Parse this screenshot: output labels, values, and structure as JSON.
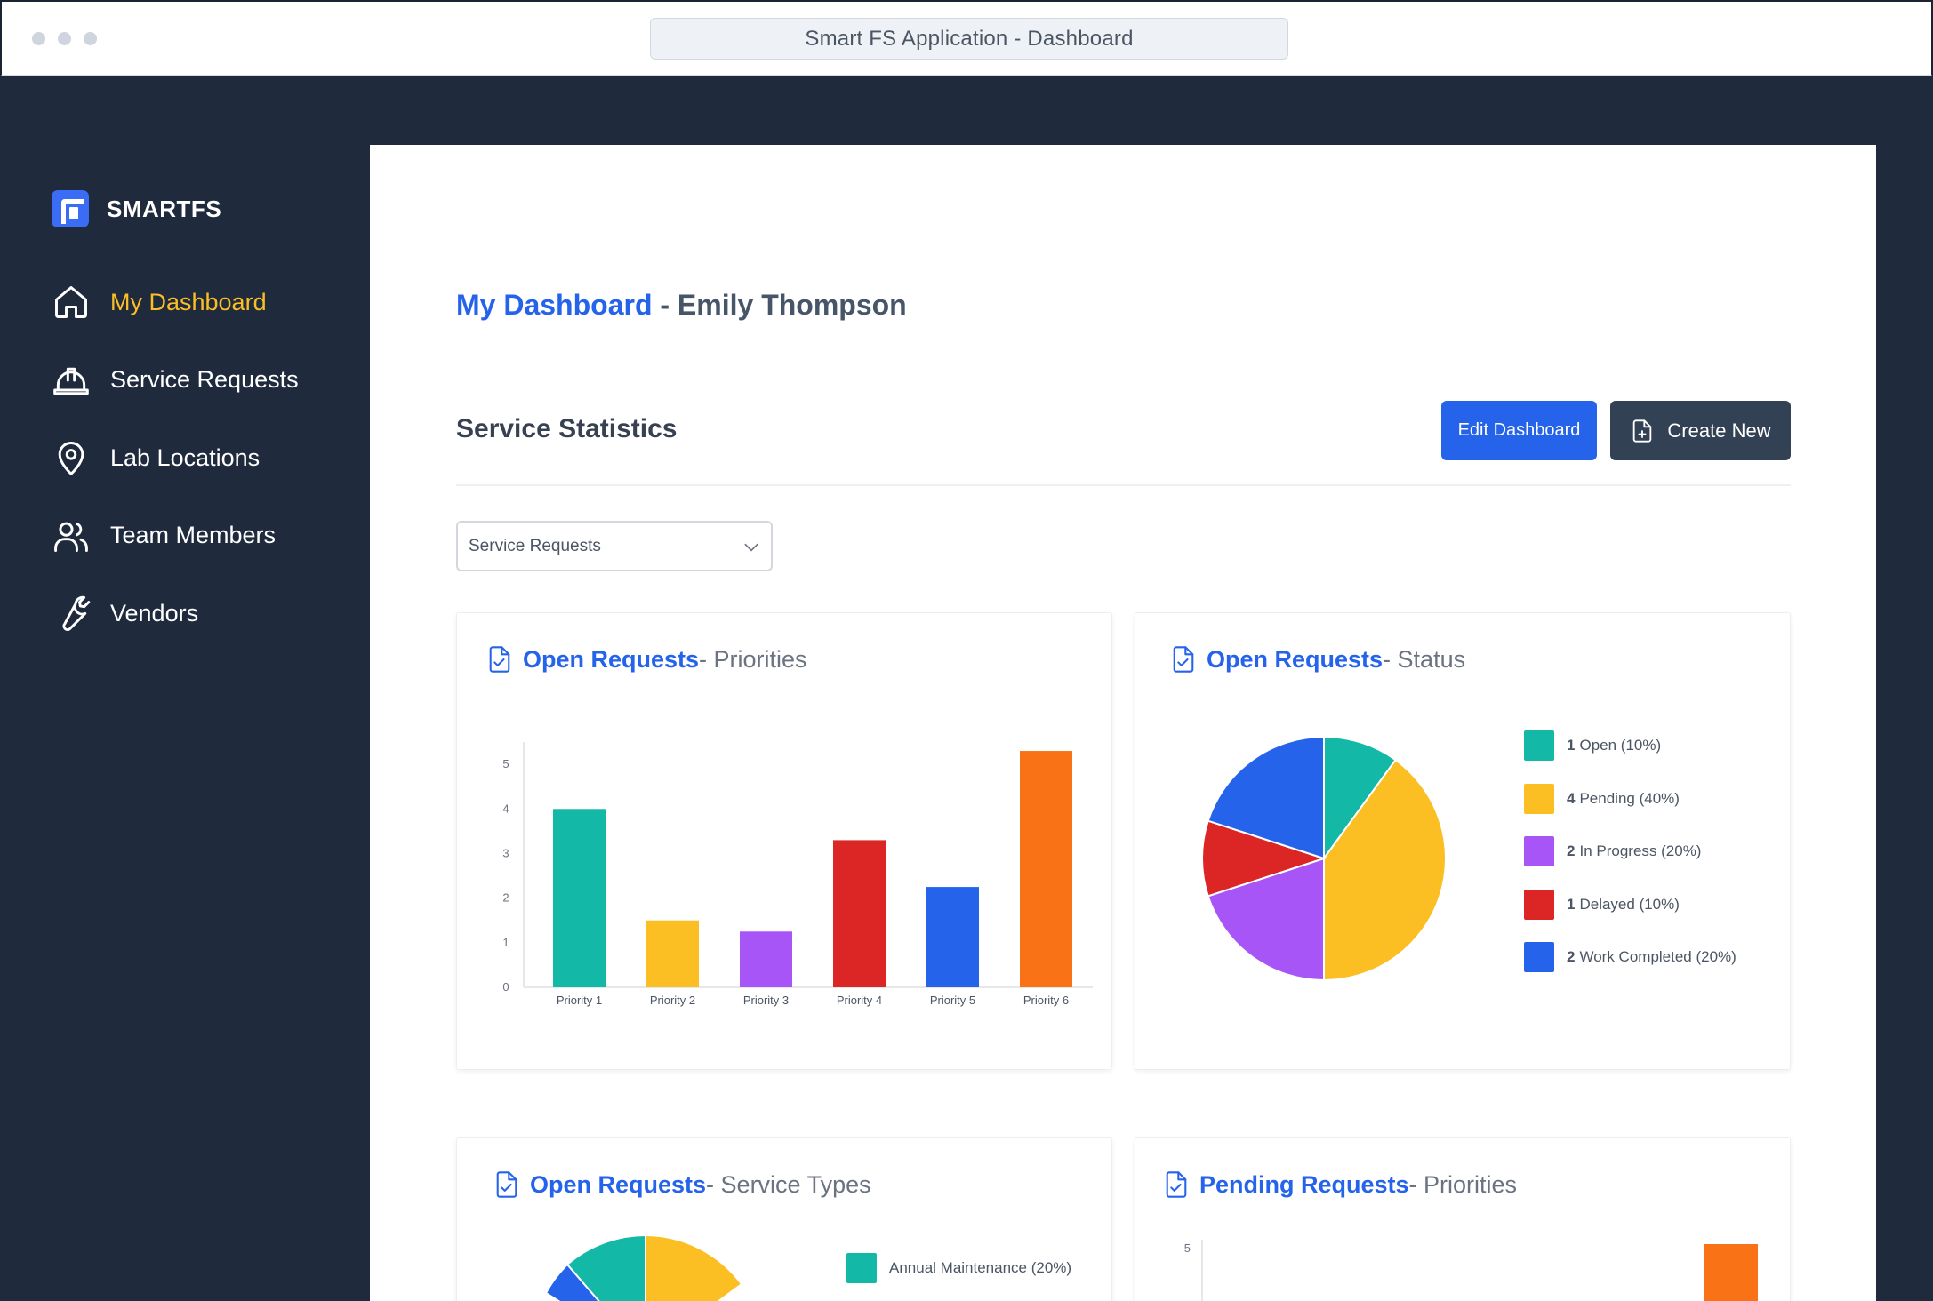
{
  "window": {
    "title": "Smart FS Application - Dashboard"
  },
  "brand": {
    "name": "SMARTFS"
  },
  "sidebar": {
    "items": [
      {
        "label": "My Dashboard",
        "icon": "home-icon",
        "active": true
      },
      {
        "label": "Service Requests",
        "icon": "hard-hat-icon"
      },
      {
        "label": "Lab Locations",
        "icon": "map-pin-icon"
      },
      {
        "label": "Team Members",
        "icon": "users-icon"
      },
      {
        "label": "Vendors",
        "icon": "wrench-icon"
      }
    ]
  },
  "header": {
    "title_highlight": "My Dashboard",
    "title_rest": " - Emily Thompson"
  },
  "stats": {
    "title": "Service Statistics",
    "edit_label": "Edit Dashboard",
    "create_label": "Create New",
    "filter_value": "Service Requests"
  },
  "cards": [
    {
      "highlight": "Open Requests",
      "rest": " - Priorities"
    },
    {
      "highlight": "Open Requests",
      "rest": " - Status"
    },
    {
      "highlight": "Open Requests",
      "rest": " - Service Types"
    },
    {
      "highlight": "Pending Requests",
      "rest": " - Priorities"
    }
  ],
  "colors": {
    "accent": "#2563eb",
    "active_nav": "#fbbf24",
    "teal": "#14b8a6",
    "yellow": "#fbbf24",
    "purple": "#a855f7",
    "red": "#dc2626",
    "blue": "#2563eb",
    "orange": "#f97316"
  },
  "chart_data": [
    {
      "type": "bar",
      "categories": [
        "Priority 1",
        "Priority 2",
        "Priority 3",
        "Priority 4",
        "Priority 5",
        "Priority 6"
      ],
      "values": [
        4,
        1.5,
        1.25,
        3.3,
        2.25,
        5.3
      ],
      "yticks": [
        0,
        1,
        2,
        3,
        4,
        5
      ],
      "ylim": [
        0,
        5.5
      ],
      "colors": [
        "#14b8a6",
        "#fbbf24",
        "#a855f7",
        "#dc2626",
        "#2563eb",
        "#f97316"
      ],
      "grid": false
    },
    {
      "type": "pie",
      "slices": [
        {
          "count": "1",
          "label": "Open (10%)",
          "value": 10,
          "color": "#14b8a6"
        },
        {
          "count": "4",
          "label": "Pending (40%)",
          "value": 40,
          "color": "#fbbf24"
        },
        {
          "count": "2",
          "label": "In Progress (20%)",
          "value": 20,
          "color": "#a855f7"
        },
        {
          "count": "1",
          "label": "Delayed (10%)",
          "value": 10,
          "color": "#dc2626"
        },
        {
          "count": "2",
          "label": "Work Completed (20%)",
          "value": 20,
          "color": "#2563eb"
        }
      ],
      "legend": "right"
    },
    {
      "type": "pie",
      "legend_visible": [
        {
          "label": "Annual Maintenance (20%)",
          "color": "#14b8a6"
        }
      ],
      "legend": "right"
    },
    {
      "type": "bar",
      "yticks_visible": [
        5
      ],
      "colors": [
        "#f97316"
      ]
    }
  ]
}
